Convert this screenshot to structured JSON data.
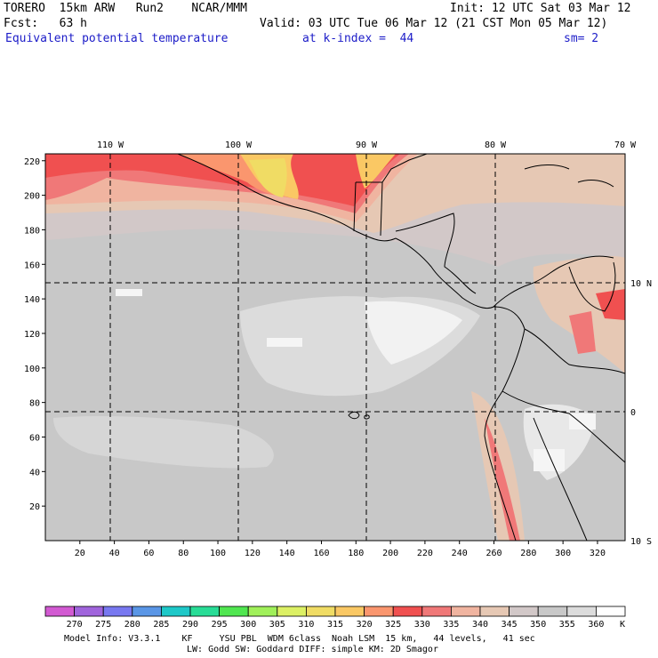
{
  "header": {
    "model": "TORERO  15km ARW   Run2    NCAR/MMM",
    "init": "Init: 12 UTC Sat 03 Mar 12",
    "fcst": "Fcst:   63 h",
    "valid": "Valid: 03 UTC Tue 06 Mar 12 (21 CST Mon 05 Mar 12)",
    "field": "Equivalent potential temperature",
    "kindex": "at k-index =  44",
    "smooth": "sm= 2"
  },
  "map": {
    "x_ticks": [
      "20",
      "40",
      "60",
      "80",
      "100",
      "120",
      "140",
      "160",
      "180",
      "200",
      "220",
      "240",
      "260",
      "280",
      "300",
      "320"
    ],
    "y_ticks": [
      "20",
      "40",
      "60",
      "80",
      "100",
      "120",
      "140",
      "160",
      "180",
      "200",
      "220"
    ],
    "lon_labels": [
      "110 W",
      "100 W",
      "90 W",
      "80 W",
      "70 W"
    ],
    "lat_labels": [
      "10 N",
      "0",
      "10 S"
    ]
  },
  "colorbar": {
    "unit": "K",
    "labels": [
      "270",
      "275",
      "280",
      "285",
      "290",
      "295",
      "300",
      "305",
      "310",
      "315",
      "320",
      "325",
      "330",
      "335",
      "340",
      "345",
      "350",
      "355",
      "360"
    ],
    "colors": [
      "#d25ad2",
      "#a064dc",
      "#7878f0",
      "#5a96e6",
      "#1ec8c8",
      "#28dc96",
      "#50e650",
      "#a0f05a",
      "#dcf064",
      "#f0dc64",
      "#fac864",
      "#fa966e",
      "#f05050",
      "#f07878",
      "#f0b4a0",
      "#e6c8b4",
      "#d2c8c8",
      "#c8c8c8",
      "#dcdcdc",
      "#ffffff"
    ]
  },
  "footer": {
    "line1": "Model Info: V3.3.1    KF     YSU PBL  WDM 6class  Noah LSM  15 km,   44 levels,   41 sec",
    "line2": "LW: Godd SW: Goddard DIFF: simple KM: 2D Smagor"
  }
}
